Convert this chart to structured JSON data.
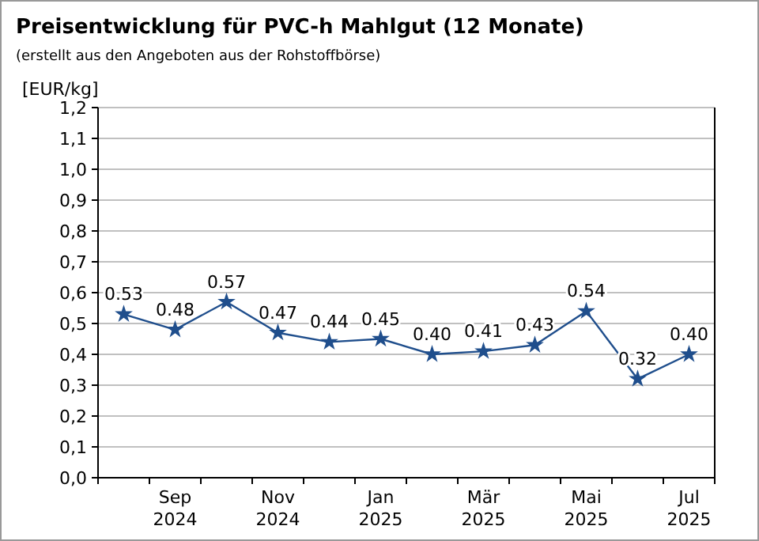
{
  "chart_data": {
    "type": "line",
    "title": "Preisentwicklung für PVC-h Mahlgut (12 Monate)",
    "subtitle": "(erstellt aus den Angeboten aus der Rohstoffbörse)",
    "ylabel": "[EUR/kg]",
    "categories": [
      null,
      "Sep 2024",
      null,
      "Nov 2024",
      null,
      "Jan 2025",
      null,
      "Mär 2025",
      null,
      "Mai 2025",
      null,
      "Jul 2025"
    ],
    "series": [
      {
        "color": "#1f4e8c",
        "values": [
          0.53,
          0.48,
          0.57,
          0.47,
          0.44,
          0.45,
          0.4,
          0.41,
          0.43,
          0.54,
          0.32,
          0.4
        ],
        "value_labels": [
          "0.53",
          "0.48",
          "0.57",
          "0.47",
          "0.44",
          "0.45",
          "0.40",
          "0.41",
          "0.43",
          "0.54",
          "0.32",
          "0.40"
        ]
      }
    ],
    "ylim": [
      0,
      1.2
    ],
    "yticks": [
      {
        "value": 0,
        "label": "0,0"
      },
      {
        "value": 0.1,
        "label": "0,1"
      },
      {
        "value": 0.2,
        "label": "0,2"
      },
      {
        "value": 0.3,
        "label": "0,3"
      },
      {
        "value": 0.4,
        "label": "0,4"
      },
      {
        "value": 0.5,
        "label": "0,5"
      },
      {
        "value": 0.6,
        "label": "0,6"
      },
      {
        "value": 0.7,
        "label": "0,7"
      },
      {
        "value": 0.8,
        "label": "0,8"
      },
      {
        "value": 0.9,
        "label": "0,9"
      },
      {
        "value": 1.0,
        "label": "1,0"
      },
      {
        "value": 1.1,
        "label": "1,1"
      },
      {
        "value": 1.2,
        "label": "1,2"
      }
    ],
    "grid": "y",
    "marker": "star",
    "line_style": "solid"
  }
}
